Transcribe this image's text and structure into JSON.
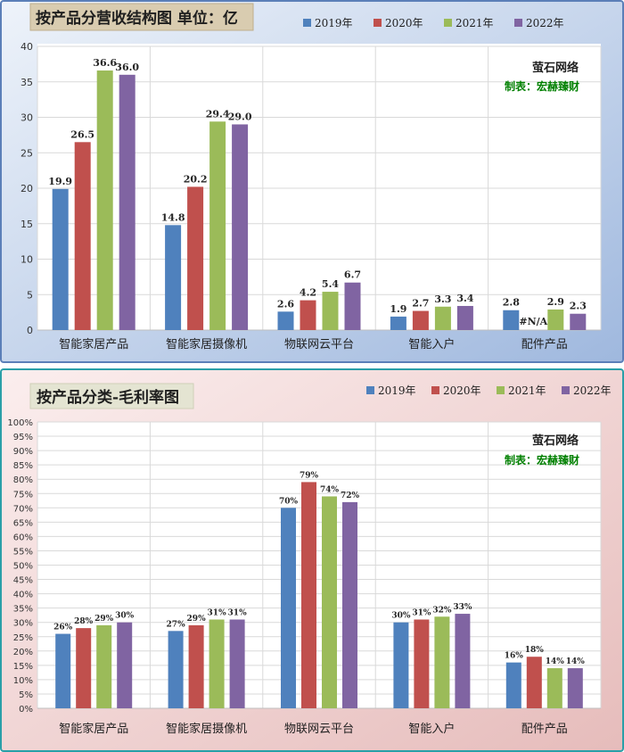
{
  "colors": {
    "y2019": "#4f81bd",
    "y2020": "#c0504d",
    "y2021": "#9bbb59",
    "y2022": "#8064a2",
    "panel1_bg": "#dbe5f1",
    "panel2_bg": "#f2dcdb",
    "credit_green": "#008000"
  },
  "chart_data": [
    {
      "type": "bar",
      "title": "按产品分营收结构图 单位：亿",
      "categories": [
        "智能家居产品",
        "智能家居摄像机",
        "物联网云平台",
        "智能入户",
        "配件产品"
      ],
      "series": [
        {
          "name": "2019年",
          "values": [
            19.9,
            14.8,
            2.6,
            1.9,
            2.8
          ],
          "labels": [
            "19.9",
            "14.8",
            "2.6",
            "1.9",
            "2.8"
          ]
        },
        {
          "name": "2020年",
          "values": [
            26.5,
            20.2,
            4.2,
            2.7,
            null
          ],
          "labels": [
            "26.5",
            "20.2",
            "4.2",
            "2.7",
            "#N/A"
          ]
        },
        {
          "name": "2021年",
          "values": [
            36.6,
            29.4,
            5.4,
            3.3,
            2.9
          ],
          "labels": [
            "36.6",
            "29.4",
            "5.4",
            "3.3",
            "2.9"
          ]
        },
        {
          "name": "2022年",
          "values": [
            36.0,
            29.0,
            6.7,
            3.4,
            2.3
          ],
          "labels": [
            "36.0",
            "29.0",
            "6.7",
            "3.4",
            "2.3"
          ]
        }
      ],
      "y_ticks": [
        "0",
        "5",
        "10",
        "15",
        "20",
        "25",
        "30",
        "35",
        "40"
      ],
      "ylim": [
        0,
        40
      ],
      "grid": true,
      "legend_position": "top-right",
      "annotation": {
        "line1": "萤石网络",
        "line2": "制表：宏赫臻财"
      }
    },
    {
      "type": "bar",
      "title": "按产品分类-毛利率图",
      "categories": [
        "智能家居产品",
        "智能家居摄像机",
        "物联网云平台",
        "智能入户",
        "配件产品"
      ],
      "series": [
        {
          "name": "2019年",
          "values": [
            26,
            27,
            70,
            30,
            16
          ],
          "labels": [
            "26%",
            "27%",
            "70%",
            "30%",
            "16%"
          ]
        },
        {
          "name": "2020年",
          "values": [
            28,
            29,
            79,
            31,
            18
          ],
          "labels": [
            "28%",
            "29%",
            "79%",
            "31%",
            "18%"
          ]
        },
        {
          "name": "2021年",
          "values": [
            29,
            31,
            74,
            32,
            14
          ],
          "labels": [
            "29%",
            "31%",
            "74%",
            "32%",
            "14%"
          ]
        },
        {
          "name": "2022年",
          "values": [
            30,
            31,
            72,
            33,
            14
          ],
          "labels": [
            "30%",
            "31%",
            "72%",
            "33%",
            "14%"
          ]
        }
      ],
      "y_ticks": [
        "0%",
        "5%",
        "10%",
        "15%",
        "20%",
        "25%",
        "30%",
        "35%",
        "40%",
        "45%",
        "50%",
        "55%",
        "60%",
        "65%",
        "70%",
        "75%",
        "80%",
        "85%",
        "90%",
        "95%",
        "100%"
      ],
      "ylim": [
        0,
        100
      ],
      "grid": true,
      "legend_position": "top-right",
      "annotation": {
        "line1": "萤石网络",
        "line2": "制表：宏赫臻财"
      }
    }
  ]
}
